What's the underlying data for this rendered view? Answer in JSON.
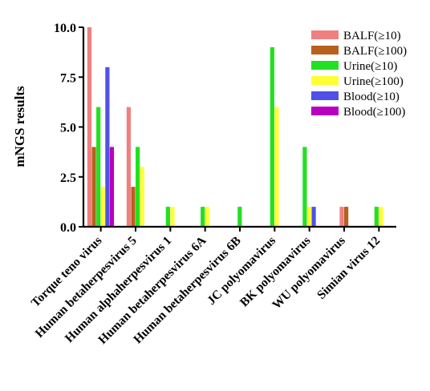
{
  "chart_data": {
    "type": "bar",
    "title": "",
    "xlabel": "",
    "ylabel": "mNGS results",
    "ylim": [
      0,
      10
    ],
    "yticks": [
      "0.0",
      "2.5",
      "5.0",
      "7.5",
      "10.0"
    ],
    "grid": false,
    "legend_position": "top-right",
    "categories": [
      "Torque teno virus",
      "Human betaherpesvirus 5",
      "Human alphaherpesvirus 1",
      "Human betaherpesvirus 6A",
      "Human betaherpesvirus 6B",
      "JC polyomavirus",
      "BK polyomavirus",
      "WU polyomavirus",
      "Simian virus 12"
    ],
    "series": [
      {
        "name": "BALF(≥10)",
        "color": "#f08080",
        "values": [
          10,
          6,
          0,
          0,
          0,
          0,
          0,
          1,
          0
        ]
      },
      {
        "name": "BALF(≥100)",
        "color": "#b8601e",
        "values": [
          4,
          2,
          0,
          0,
          0,
          0,
          0,
          1,
          0
        ]
      },
      {
        "name": "Urine(≥10)",
        "color": "#22e022",
        "values": [
          6,
          4,
          1,
          1,
          1,
          9,
          4,
          0,
          1
        ]
      },
      {
        "name": "Urine(≥100)",
        "color": "#ffff33",
        "values": [
          2,
          3,
          1,
          1,
          0,
          6,
          1,
          0,
          1
        ]
      },
      {
        "name": "Blood(≥10)",
        "color": "#5050e8",
        "values": [
          8,
          0,
          0,
          0,
          0,
          0,
          1,
          0,
          0
        ]
      },
      {
        "name": "Blood(≥100)",
        "color": "#b800c0",
        "values": [
          4,
          0,
          0,
          0,
          0,
          0,
          0,
          0,
          0
        ]
      }
    ]
  }
}
